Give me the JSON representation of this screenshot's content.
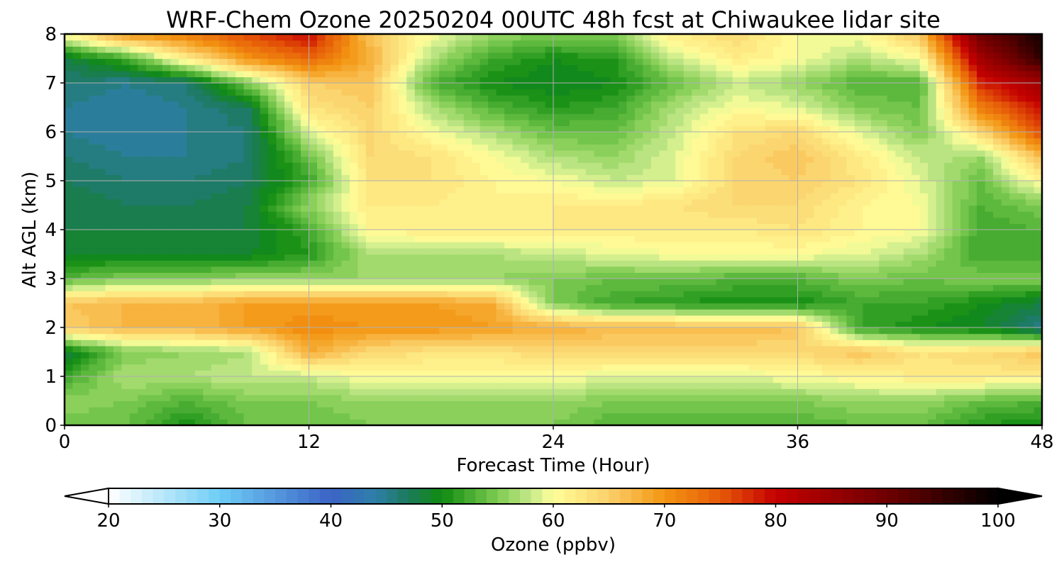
{
  "chart_data": {
    "type": "heatmap",
    "title": "WRF-Chem Ozone  20250204 00UTC 48h fcst at Chiwaukee lidar site",
    "xlabel": "Forecast Time (Hour)",
    "ylabel": "Alt AGL (km)",
    "xlim": [
      0,
      48
    ],
    "ylim": [
      0,
      8
    ],
    "x_ticks": [
      "0",
      "12",
      "24",
      "36",
      "48"
    ],
    "y_ticks": [
      "0",
      "1",
      "2",
      "3",
      "4",
      "5",
      "6",
      "7",
      "8"
    ],
    "grid": true,
    "x": [
      0,
      3,
      6,
      9,
      12,
      15,
      18,
      21,
      24,
      27,
      30,
      33,
      36,
      39,
      42,
      45,
      48
    ],
    "y": [
      0,
      0.5,
      1,
      1.5,
      2,
      2.5,
      3,
      3.5,
      4,
      4.5,
      5,
      5.5,
      6,
      6.5,
      7,
      7.5,
      8
    ],
    "z": [
      [
        54,
        54,
        50,
        54,
        54,
        55,
        55,
        55,
        55,
        53,
        53,
        53,
        53,
        54,
        54,
        51,
        50
      ],
      [
        56,
        55,
        53,
        55,
        55,
        56,
        56,
        56,
        56,
        55,
        55,
        55,
        55,
        56,
        56,
        54,
        53
      ],
      [
        52,
        57,
        57,
        58,
        58,
        60,
        60,
        60,
        60,
        59,
        59,
        59,
        60,
        61,
        62,
        62,
        62
      ],
      [
        48,
        55,
        56,
        57,
        68,
        64,
        63,
        63,
        64,
        64,
        64,
        64,
        64,
        66,
        63,
        64,
        66
      ],
      [
        65,
        67,
        67,
        69,
        71,
        70,
        70,
        69,
        68,
        67,
        67,
        67,
        66,
        52,
        50,
        49,
        45
      ],
      [
        66,
        67,
        67,
        69,
        69,
        69,
        69,
        68,
        55,
        52,
        51,
        50,
        50,
        52,
        52,
        50,
        48
      ],
      [
        53,
        55,
        55,
        56,
        56,
        56,
        56,
        56,
        55,
        54,
        54,
        53,
        53,
        55,
        54,
        55,
        55
      ],
      [
        49,
        49,
        49,
        49,
        51,
        57,
        57,
        57,
        58,
        59,
        60,
        60,
        60,
        59,
        57,
        52,
        52
      ],
      [
        48,
        48,
        48,
        48,
        52,
        61,
        62,
        62,
        62,
        62,
        62,
        62,
        63,
        61,
        60,
        52,
        53
      ],
      [
        48,
        47,
        47,
        48,
        56,
        62,
        62,
        61,
        62,
        62,
        63,
        64,
        64,
        61,
        60,
        53,
        55
      ],
      [
        47,
        46,
        46,
        47,
        52,
        63,
        63,
        61,
        60,
        58,
        59,
        64,
        65,
        63,
        59,
        54,
        61
      ],
      [
        46,
        45,
        45,
        46,
        54,
        64,
        63,
        60,
        57,
        56,
        59,
        64,
        66,
        62,
        58,
        56,
        67
      ],
      [
        45,
        44,
        45,
        46,
        59,
        64,
        60,
        57,
        54,
        54,
        58,
        63,
        64,
        59,
        55,
        64,
        76
      ],
      [
        45,
        44,
        45,
        47,
        63,
        65,
        57,
        53,
        51,
        52,
        57,
        60,
        59,
        55,
        54,
        72,
        80
      ],
      [
        46,
        45,
        46,
        55,
        65,
        66,
        53,
        50,
        49,
        50,
        54,
        58,
        56,
        53,
        53,
        78,
        84
      ],
      [
        48,
        52,
        62,
        70,
        74,
        68,
        57,
        52,
        50,
        51,
        58,
        62,
        60,
        57,
        60,
        84,
        96
      ],
      [
        60,
        70,
        72,
        76,
        80,
        66,
        60,
        56,
        55,
        55,
        62,
        64,
        60,
        60,
        66,
        90,
        98
      ]
    ],
    "colorbar": {
      "label": "Ozone  (ppbv)",
      "min": 20,
      "max": 100,
      "step": 1,
      "extend": "both",
      "tick_labels": [
        "20",
        "30",
        "40",
        "50",
        "60",
        "70",
        "80",
        "90",
        "100"
      ],
      "stops": [
        {
          "v": 20,
          "c": "#ffffff"
        },
        {
          "v": 30,
          "c": "#6ecdf6"
        },
        {
          "v": 40,
          "c": "#3b63c6"
        },
        {
          "v": 44,
          "c": "#2e7fa8"
        },
        {
          "v": 47,
          "c": "#1b7a5a"
        },
        {
          "v": 50,
          "c": "#108c10"
        },
        {
          "v": 55,
          "c": "#7ecb52"
        },
        {
          "v": 58,
          "c": "#c6e98a"
        },
        {
          "v": 60,
          "c": "#ffff9a"
        },
        {
          "v": 65,
          "c": "#fbd06a"
        },
        {
          "v": 70,
          "c": "#f39512"
        },
        {
          "v": 75,
          "c": "#e65a08"
        },
        {
          "v": 80,
          "c": "#c50000"
        },
        {
          "v": 90,
          "c": "#6e0000"
        },
        {
          "v": 100,
          "c": "#000000"
        }
      ]
    }
  }
}
